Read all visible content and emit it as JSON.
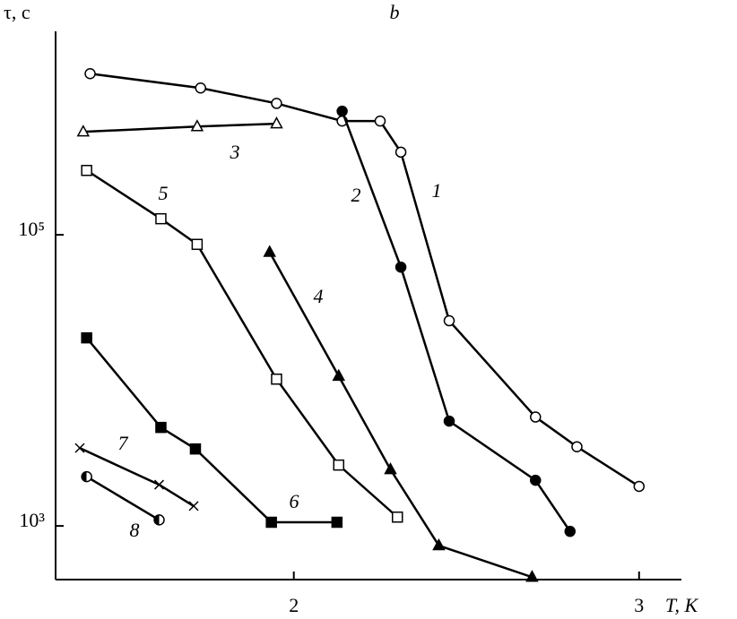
{
  "chart_data": {
    "type": "line",
    "panel_label": "b",
    "y_label": "τ, c",
    "x_label": "T, K",
    "log_y": true,
    "grid": false,
    "color": "#000000",
    "xlim": [
      1.31,
      3.12
    ],
    "xticks": [
      2,
      3
    ],
    "ylim": [
      428,
      2500000
    ],
    "yticks": [
      {
        "value": 100000,
        "label": "10⁵"
      },
      {
        "value": 1000,
        "label": "10³"
      }
    ],
    "series": [
      {
        "name": "1",
        "marker": "circle-open",
        "x": [
          1.41,
          1.73,
          1.95,
          2.14,
          2.25,
          2.31,
          2.45,
          2.7,
          2.82,
          3.0
        ],
        "values": [
          1280000,
          1020000,
          800000,
          605000,
          605000,
          370000,
          25700,
          5600,
          3500,
          1870
        ]
      },
      {
        "name": "2",
        "marker": "circle-filled",
        "x": [
          2.14,
          2.31,
          2.45,
          2.7,
          2.8
        ],
        "values": [
          707000,
          60000,
          5250,
          2060,
          918
        ]
      },
      {
        "name": "3",
        "marker": "triangle-open",
        "x": [
          1.39,
          1.72,
          1.95
        ],
        "values": [
          510000,
          555000,
          580000
        ]
      },
      {
        "name": "4",
        "marker": "triangle-filled",
        "x": [
          1.93,
          2.13,
          2.28,
          2.42,
          2.69
        ],
        "values": [
          76000,
          10700,
          2440,
          733,
          445
        ]
      },
      {
        "name": "5",
        "marker": "square-open",
        "x": [
          1.4,
          1.615,
          1.72,
          1.95,
          2.13,
          2.3
        ],
        "values": [
          277000,
          129000,
          86000,
          10200,
          2620,
          1150
        ]
      },
      {
        "name": "6",
        "marker": "square-filled",
        "x": [
          1.4,
          1.615,
          1.715,
          1.935,
          2.125
        ],
        "values": [
          19600,
          4750,
          3380,
          1060,
          1060
        ]
      },
      {
        "name": "7",
        "marker": "cross",
        "x": [
          1.38,
          1.61,
          1.71
        ],
        "values": [
          3430,
          1920,
          1370
        ]
      },
      {
        "name": "8",
        "marker": "circle-half",
        "x": [
          1.4,
          1.61
        ],
        "values": [
          2180,
          1100
        ]
      }
    ]
  }
}
